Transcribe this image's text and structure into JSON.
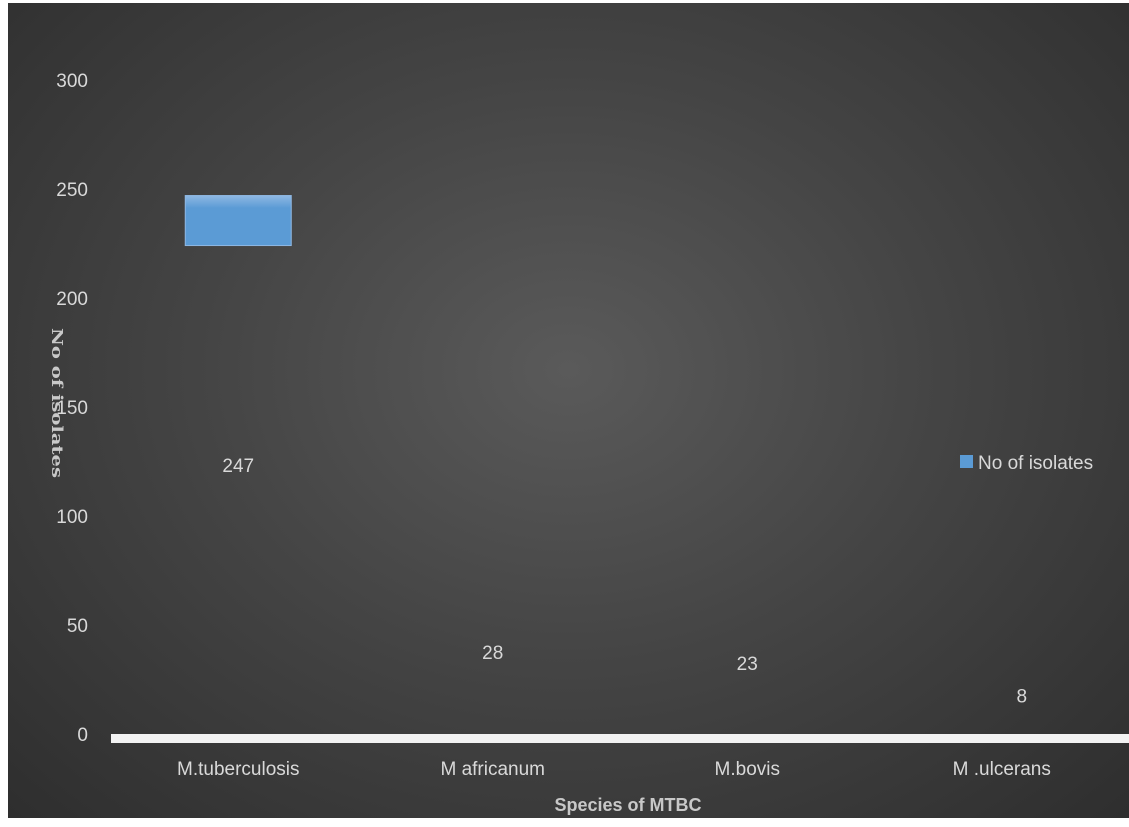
{
  "chart_data": {
    "type": "bar",
    "title": "",
    "xlabel": "Species of MTBC",
    "ylabel": "No of isolates",
    "categories": [
      "M.tuberculosis",
      "M africanum",
      "M.bovis",
      "M .ulcerans"
    ],
    "series": [
      {
        "name": "No of isolates",
        "values": [
          247,
          28,
          23,
          8
        ],
        "labels": [
          "247",
          "28",
          "23",
          "8"
        ]
      }
    ],
    "ylim": [
      0,
      300
    ],
    "yticks": [
      0,
      50,
      100,
      150,
      200,
      250,
      300
    ],
    "ytick_labels": [
      "0",
      "50",
      "100",
      "150",
      "200",
      "250",
      "300"
    ],
    "grid": false,
    "legend": "right",
    "colors": {
      "bar": "#5b9bd5",
      "background": "#454545",
      "text": "#d9d9d9",
      "axis": "#f2f2f2"
    }
  }
}
